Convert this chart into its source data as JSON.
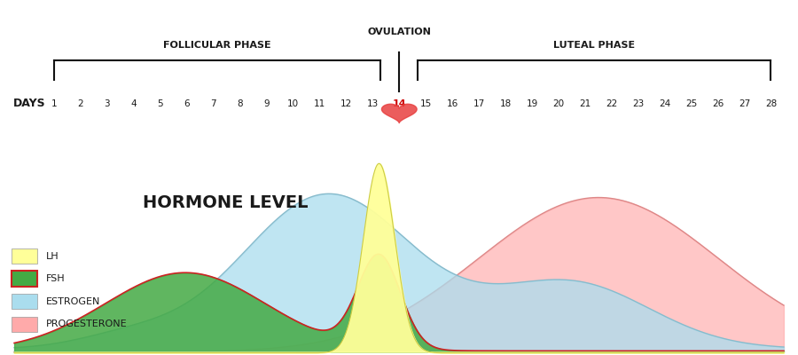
{
  "title": "HORMONE LEVEL",
  "follicular_label": "FOLLICULAR PHASE",
  "luteal_label": "LUTEAL PHASE",
  "ovulation_label": "OVULATION",
  "ovulation_day": 14,
  "colors": {
    "lh_fill": "#FFFF99",
    "lh_line": "#CCCC44",
    "fsh_fill": "#44AA44",
    "fsh_line": "#CC2222",
    "estrogen_fill": "#AADDEE",
    "estrogen_line": "#88BBCC",
    "progesterone_fill": "#FFAAAA",
    "progesterone_line": "#DD8888",
    "background": "#FFFFFF",
    "text": "#1a1a1a",
    "heart": "#E84040",
    "heart_text": "#CC0000",
    "bracket_line": "#111111",
    "day14_color": "#CC0000"
  },
  "fsh_legend_fill": "#44AA44",
  "fsh_legend_border": "#CC2222",
  "lh_legend_fill": "#FFFF99",
  "estrogen_legend_fill": "#AADDEE",
  "progesterone_legend_fill": "#FFAAAA"
}
